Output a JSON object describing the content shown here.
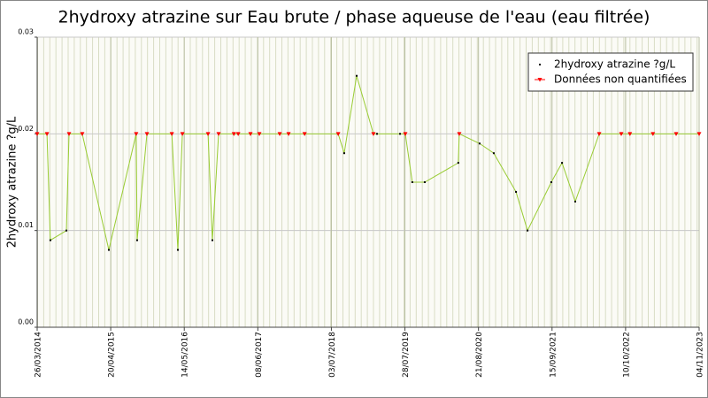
{
  "chart_data": {
    "type": "line",
    "title": "2hydroxy atrazine sur Eau brute / phase aqueuse de l'eau (eau filtrée)",
    "y_label": "2hydroxy atrazine ?g/L",
    "x": [
      "26/03/2014",
      "17/05/2014",
      "04/06/2014",
      "28/08/2014",
      "11/09/2014",
      "20/11/2014",
      "10/04/2015",
      "02/09/2015",
      "07/09/2015",
      "29/10/2015",
      "09/03/2016",
      "10/04/2016",
      "04/05/2016",
      "17/09/2016",
      "10/10/2016",
      "12/11/2016",
      "01/02/2017",
      "24/02/2017",
      "30/04/2017",
      "16/06/2017",
      "02/10/2017",
      "18/11/2017",
      "11/02/2018",
      "08/08/2018",
      "09/09/2018",
      "14/11/2018",
      "11/02/2019",
      "02/03/2019",
      "02/07/2019",
      "30/07/2019",
      "05/09/2019",
      "10/11/2019",
      "06/05/2020",
      "11/05/2020",
      "27/08/2020",
      "10/11/2020",
      "08/03/2021",
      "08/05/2021",
      "11/09/2021",
      "07/11/2021",
      "16/01/2022",
      "23/05/2022",
      "17/09/2022",
      "02/11/2022",
      "04/03/2023",
      "05/07/2023",
      "04/11/2023"
    ],
    "series": [
      {
        "name": "2hydroxy atrazine ?g/L",
        "color": "#99cc33",
        "values": [
          0.02,
          0.02,
          0.009,
          0.01,
          0.02,
          0.02,
          0.008,
          0.02,
          0.009,
          0.02,
          0.02,
          0.008,
          0.02,
          0.02,
          0.009,
          0.02,
          0.02,
          0.02,
          0.02,
          0.02,
          0.02,
          0.02,
          0.02,
          0.02,
          0.018,
          0.026,
          0.02,
          0.02,
          0.02,
          0.02,
          0.015,
          0.015,
          0.017,
          0.02,
          0.019,
          0.018,
          0.014,
          0.01,
          0.015,
          0.017,
          0.013,
          0.02,
          0.02,
          0.02,
          0.02,
          0.02,
          0.02
        ]
      },
      {
        "name": "Données non quantifiées",
        "color": "#ff0000",
        "values": [
          0.02,
          0.02,
          null,
          null,
          0.02,
          0.02,
          null,
          0.02,
          null,
          0.02,
          0.02,
          null,
          0.02,
          0.02,
          null,
          0.02,
          0.02,
          0.02,
          0.02,
          0.02,
          0.02,
          0.02,
          0.02,
          0.02,
          null,
          null,
          0.02,
          null,
          null,
          0.02,
          null,
          null,
          null,
          0.02,
          null,
          null,
          null,
          null,
          null,
          null,
          null,
          0.02,
          0.02,
          0.02,
          0.02,
          0.02,
          0.02
        ]
      }
    ],
    "xlim": [
      "26/03/2014",
      "04/11/2023"
    ],
    "xticks": [
      "26/03/2014",
      "20/04/2015",
      "14/05/2016",
      "08/06/2017",
      "03/07/2018",
      "28/07/2019",
      "21/08/2020",
      "15/09/2021",
      "10/10/2022",
      "04/11/2023"
    ],
    "ylim": [
      0,
      0.03
    ],
    "yticks": [
      {
        "value": 0,
        "label": "0.00"
      },
      {
        "value": 0.01,
        "label": "0.01"
      },
      {
        "value": 0.02,
        "label": "0.02"
      },
      {
        "value": 0.03,
        "label": "0.03"
      }
    ],
    "grid": true,
    "legend": "upper right"
  }
}
